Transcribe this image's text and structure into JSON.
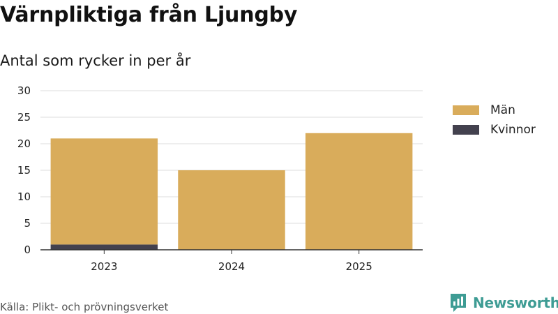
{
  "header": {
    "title": "Värnpliktiga från Ljungby",
    "subtitle": "Antal som rycker in per år"
  },
  "chart_data": {
    "type": "bar",
    "stacked": true,
    "categories": [
      "2023",
      "2024",
      "2025"
    ],
    "series": [
      {
        "name": "Kvinnor",
        "values": [
          1,
          0,
          0
        ],
        "color": "#43414e"
      },
      {
        "name": "Män",
        "values": [
          20,
          15,
          22
        ],
        "color": "#d9ac5b"
      }
    ],
    "ylim": [
      0,
      30
    ],
    "yticks": [
      0,
      5,
      10,
      15,
      20,
      25,
      30
    ],
    "grid": true,
    "legend_position": "right"
  },
  "legend": {
    "items": [
      {
        "label": "Män",
        "color": "#d9ac5b"
      },
      {
        "label": "Kvinnor",
        "color": "#43414e"
      }
    ]
  },
  "footer": {
    "source": "Källa: Plikt- och prövningsverket",
    "brand": "Newsworthy",
    "brand_icon": "bar-chart-speech-bubble-icon",
    "brand_color": "#3e9c94"
  }
}
